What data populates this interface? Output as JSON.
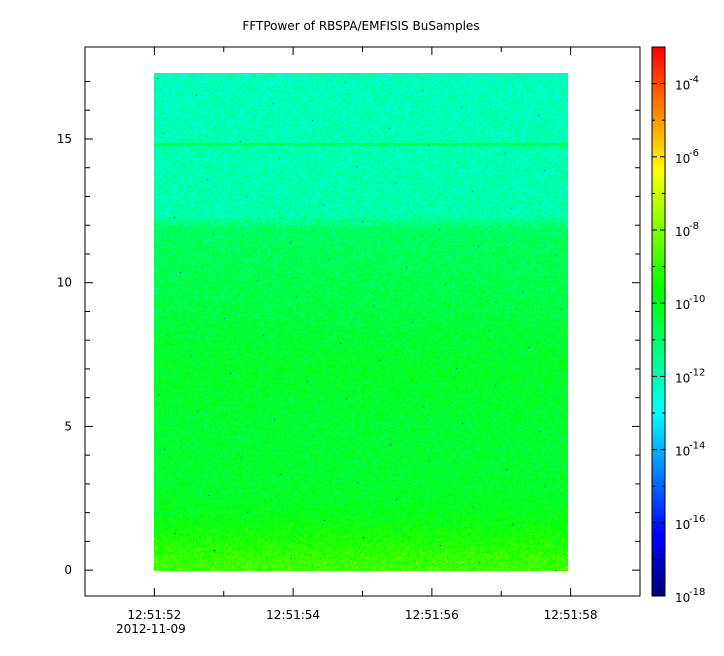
{
  "chart_data": {
    "type": "heatmap",
    "title": "FFTPower of RBSPA/EMFISIS  BuSamples",
    "xlabel": "",
    "ylabel": "",
    "x_range": [
      "12:51:51",
      "12:51:59"
    ],
    "data_x_range": [
      "12:51:52.1",
      "12:51:58.1"
    ],
    "y_range": [
      -0.9,
      18.2
    ],
    "data_y_range": [
      0,
      17.5
    ],
    "x_tick_labels": [
      "12:51:52",
      "12:51:54",
      "12:51:56",
      "12:51:58"
    ],
    "x_tick_seconds": [
      52,
      54,
      56,
      58
    ],
    "x_date_label": "2012-11-09",
    "y_tick_values": [
      0,
      5,
      10,
      15
    ],
    "y_tick_labels": [
      "0",
      "5",
      "10",
      "15"
    ],
    "colorbar": {
      "scale": "log",
      "min": 1e-18,
      "max": 0.001,
      "tick_exponents": [
        -18,
        -16,
        -14,
        -12,
        -10,
        -8,
        -6,
        -4
      ],
      "tick_base": "10",
      "colormap": [
        "#00007f",
        "#0000ff",
        "#0080ff",
        "#00ffff",
        "#00ff80",
        "#00ff00",
        "#80ff00",
        "#ffff00",
        "#ff8000",
        "#ff0000"
      ]
    },
    "power_profile_log10": [
      {
        "y": 0,
        "log10_power": -8.8
      },
      {
        "y": 0.5,
        "log10_power": -9.0
      },
      {
        "y": 1.0,
        "log10_power": -9.3
      },
      {
        "y": 1.5,
        "log10_power": -9.6
      },
      {
        "y": 2.0,
        "log10_power": -9.9
      },
      {
        "y": 3.0,
        "log10_power": -10.2
      },
      {
        "y": 5.0,
        "log10_power": -10.3
      },
      {
        "y": 7.0,
        "log10_power": -10.1
      },
      {
        "y": 9.0,
        "log10_power": -10.5
      },
      {
        "y": 12.0,
        "log10_power": -10.9
      },
      {
        "y": 12.5,
        "log10_power": -11.9
      },
      {
        "y": 15.0,
        "log10_power": -12.0
      },
      {
        "y": 17.5,
        "log10_power": -12.1
      }
    ],
    "features": [
      {
        "y": 15.0,
        "log10_power": -10.8
      }
    ]
  }
}
